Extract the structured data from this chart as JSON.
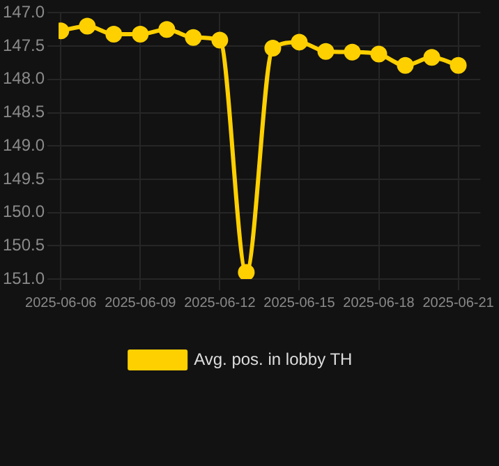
{
  "chart_data": {
    "type": "line",
    "x": [
      "2025-06-06",
      "2025-06-07",
      "2025-06-08",
      "2025-06-09",
      "2025-06-10",
      "2025-06-11",
      "2025-06-12",
      "2025-06-13",
      "2025-06-14",
      "2025-06-15",
      "2025-06-16",
      "2025-06-17",
      "2025-06-18",
      "2025-06-19",
      "2025-06-20",
      "2025-06-21"
    ],
    "series": [
      {
        "name": "Avg. pos. in lobby TH",
        "color": "#ffd000",
        "values": [
          147.27,
          147.2,
          147.32,
          147.32,
          147.25,
          147.37,
          147.41,
          150.9,
          147.53,
          147.44,
          147.58,
          147.59,
          147.62,
          147.79,
          147.67,
          147.79
        ]
      }
    ],
    "xlim": [
      "2025-06-05T22:00",
      "2025-06-21T20:00"
    ],
    "xticks": [
      "2025-06-06",
      "2025-06-09",
      "2025-06-12",
      "2025-06-15",
      "2025-06-18",
      "2025-06-21"
    ],
    "ylim": [
      151.0,
      147.0
    ],
    "yticks": [
      {
        "value": 147.0,
        "label": "147.0"
      },
      {
        "value": 147.5,
        "label": "147.5"
      },
      {
        "value": 148.0,
        "label": "148.0"
      },
      {
        "value": 148.5,
        "label": "148.5"
      },
      {
        "value": 149.0,
        "label": "149.0"
      },
      {
        "value": 149.5,
        "label": "149.5"
      },
      {
        "value": 150.0,
        "label": "150.0"
      },
      {
        "value": 150.5,
        "label": "150.5"
      },
      {
        "value": 151.0,
        "label": "151.0"
      }
    ],
    "grid": true,
    "legend": "bottom",
    "marker": "circle",
    "line_style": "solid"
  }
}
